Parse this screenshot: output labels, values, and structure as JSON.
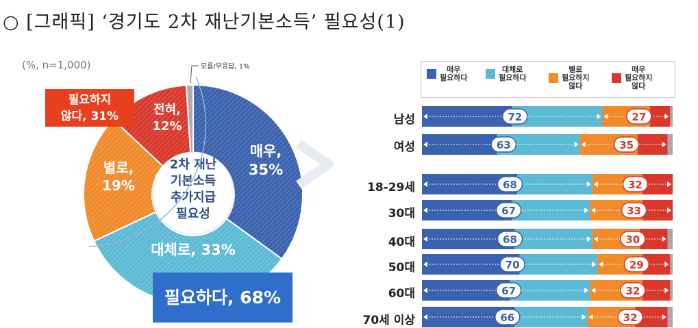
{
  "title": "○ [그래픽] ‘경기도 2차 재난기본소득’ 필요성(1)",
  "note": "(%, n=1,000)",
  "pie": {
    "center_lines": [
      "2차 재난",
      "기본소득",
      "추가지급",
      "필요성"
    ],
    "callout_negative": [
      "필요하지",
      "않다, 31%"
    ],
    "callout_positive": "필요하다, 68%",
    "small_label": "모름/무응답, 1%",
    "slices": [
      {
        "label": "매우,",
        "pct_label": "35%",
        "value": 35,
        "color": "#3a62ae"
      },
      {
        "label": "대체로, 33%",
        "pct_label": "",
        "value": 33,
        "color": "#5cbad4"
      },
      {
        "label": "별로,",
        "pct_label": "19%",
        "value": 19,
        "color": "#f08a2a"
      },
      {
        "label": "전혀,",
        "pct_label": "12%",
        "value": 12,
        "color": "#d9382c"
      },
      {
        "label": "",
        "pct_label": "",
        "value": 1,
        "color": "#a8a8a8"
      }
    ]
  },
  "legend": [
    {
      "lines": [
        "매우",
        "필요하다"
      ],
      "color": "#3a62ae"
    },
    {
      "lines": [
        "대체로",
        "필요하다"
      ],
      "color": "#5cbad4"
    },
    {
      "lines": [
        "별로",
        "필요하지",
        "않다"
      ],
      "color": "#f08a2a"
    },
    {
      "lines": [
        "매우",
        "필요하지",
        "않다"
      ],
      "color": "#d9382c"
    }
  ],
  "chart_data": {
    "type": "bar",
    "stacked": true,
    "orientation": "horizontal",
    "categories": [
      "남성",
      "여성",
      "18-29세",
      "30대",
      "40대",
      "50대",
      "60대",
      "70세 이상"
    ],
    "series": [
      {
        "name": "매우 필요하다",
        "values": [
          36,
          30,
          38,
          36,
          37,
          39,
          35,
          37
        ]
      },
      {
        "name": "대체로 필요하다",
        "values": [
          36,
          33,
          30,
          31,
          31,
          31,
          32,
          29
        ]
      },
      {
        "name": "별로 필요하지 않다",
        "values": [
          19,
          23,
          20,
          21,
          19,
          18,
          21,
          19
        ]
      },
      {
        "name": "매우 필요하지 않다",
        "values": [
          8,
          12,
          12,
          12,
          11,
          11,
          11,
          13
        ]
      },
      {
        "name": "모름/무응답",
        "values": [
          1,
          2,
          0,
          0,
          2,
          1,
          1,
          2
        ]
      }
    ],
    "positive_totals": [
      72,
      63,
      68,
      67,
      68,
      70,
      67,
      66
    ],
    "negative_totals": [
      27,
      35,
      32,
      33,
      30,
      29,
      32,
      32
    ],
    "xlim": [
      0,
      100
    ]
  }
}
